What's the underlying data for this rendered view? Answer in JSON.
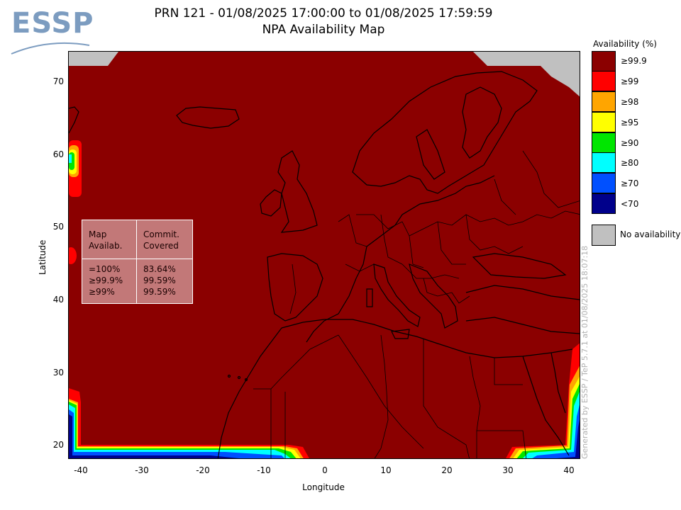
{
  "title": {
    "line1": "PRN 121 - 01/08/2025 17:00:00 to 01/08/2025 17:59:59",
    "line2": "NPA Availability Map"
  },
  "logo": {
    "text": "ESSP"
  },
  "axes": {
    "xlabel": "Longitude",
    "ylabel": "Latitude",
    "xticks": [
      "-40",
      "-30",
      "-20",
      "-10",
      "0",
      "10",
      "20",
      "30",
      "40"
    ],
    "yticks": [
      "70",
      "60",
      "50",
      "40",
      "30",
      "20"
    ],
    "xlim": [
      -42,
      42
    ],
    "ylim": [
      18,
      74
    ]
  },
  "stats_box": {
    "header_left": "Map\nAvailab.",
    "header_right": "Commit.\nCovered",
    "rows": [
      {
        "label": "=100%",
        "value": "83.64%"
      },
      {
        "label": "≥99.9%",
        "value": "99.59%"
      },
      {
        "label": "≥99%",
        "value": "99.59%"
      }
    ]
  },
  "legend": {
    "title": "Availability (%)",
    "items": [
      {
        "label": "≥99.9",
        "color": "#8b0000"
      },
      {
        "label": "≥99",
        "color": "#ff0000"
      },
      {
        "label": "≥98",
        "color": "#ffa500"
      },
      {
        "label": "≥95",
        "color": "#ffff00"
      },
      {
        "label": "≥90",
        "color": "#00e600"
      },
      {
        "label": "≥80",
        "color": "#00ffff"
      },
      {
        "label": "≥70",
        "color": "#0050ff"
      },
      {
        "label": "<70",
        "color": "#00008b"
      }
    ],
    "no_data": {
      "label": "No availability",
      "color": "#c0c0c0"
    }
  },
  "footer": "Generated by ESSP / TeP 5.7.1 at 01/08/2025 18:07:18"
}
